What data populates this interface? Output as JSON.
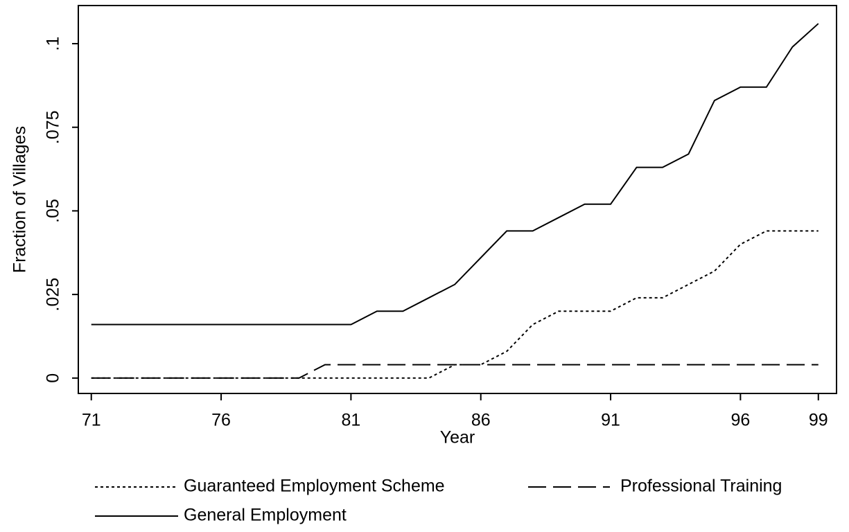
{
  "chart_data": {
    "type": "line",
    "xlabel": "Year",
    "ylabel": "Fraction of Villages",
    "x": [
      71,
      72,
      73,
      74,
      75,
      76,
      77,
      78,
      79,
      80,
      81,
      82,
      83,
      84,
      85,
      86,
      87,
      88,
      89,
      90,
      91,
      92,
      93,
      94,
      95,
      96,
      97,
      98,
      99
    ],
    "series": [
      {
        "name": "Guaranteed Employment Scheme",
        "color": "#000000",
        "dash": "dotted",
        "values": [
          0,
          0,
          0,
          0,
          0,
          0,
          0,
          0,
          0,
          0,
          0,
          0,
          0,
          0,
          0.004,
          0.004,
          0.008,
          0.016,
          0.02,
          0.02,
          0.02,
          0.024,
          0.024,
          0.028,
          0.032,
          0.04,
          0.044,
          0.044,
          0.044
        ]
      },
      {
        "name": "Professional Training",
        "color": "#000000",
        "dash": "dashed",
        "values": [
          0,
          0,
          0,
          0,
          0,
          0,
          0,
          0,
          0,
          0.004,
          0.004,
          0.004,
          0.004,
          0.004,
          0.004,
          0.004,
          0.004,
          0.004,
          0.004,
          0.004,
          0.004,
          0.004,
          0.004,
          0.004,
          0.004,
          0.004,
          0.004,
          0.004,
          0.004
        ]
      },
      {
        "name": "General Employment",
        "color": "#000000",
        "dash": "solid",
        "values": [
          0.016,
          0.016,
          0.016,
          0.016,
          0.016,
          0.016,
          0.016,
          0.016,
          0.016,
          0.016,
          0.016,
          0.02,
          0.02,
          0.024,
          0.028,
          0.036,
          0.044,
          0.044,
          0.048,
          0.052,
          0.052,
          0.063,
          0.063,
          0.067,
          0.083,
          0.087,
          0.087,
          0.099,
          0.106
        ]
      }
    ],
    "xlim": [
      70.5,
      99.7
    ],
    "xticks": [
      71,
      76,
      81,
      86,
      91,
      96,
      99
    ],
    "ylim": [
      -0.0046,
      0.1114
    ],
    "yticks": [
      0,
      {
        "value": 0.025,
        "label": ".025"
      },
      {
        "value": 0.05,
        "label": ".05"
      },
      {
        "value": 0.075,
        "label": ".075"
      },
      {
        "value": 0.1,
        "label": ".1"
      }
    ],
    "grid": false
  }
}
